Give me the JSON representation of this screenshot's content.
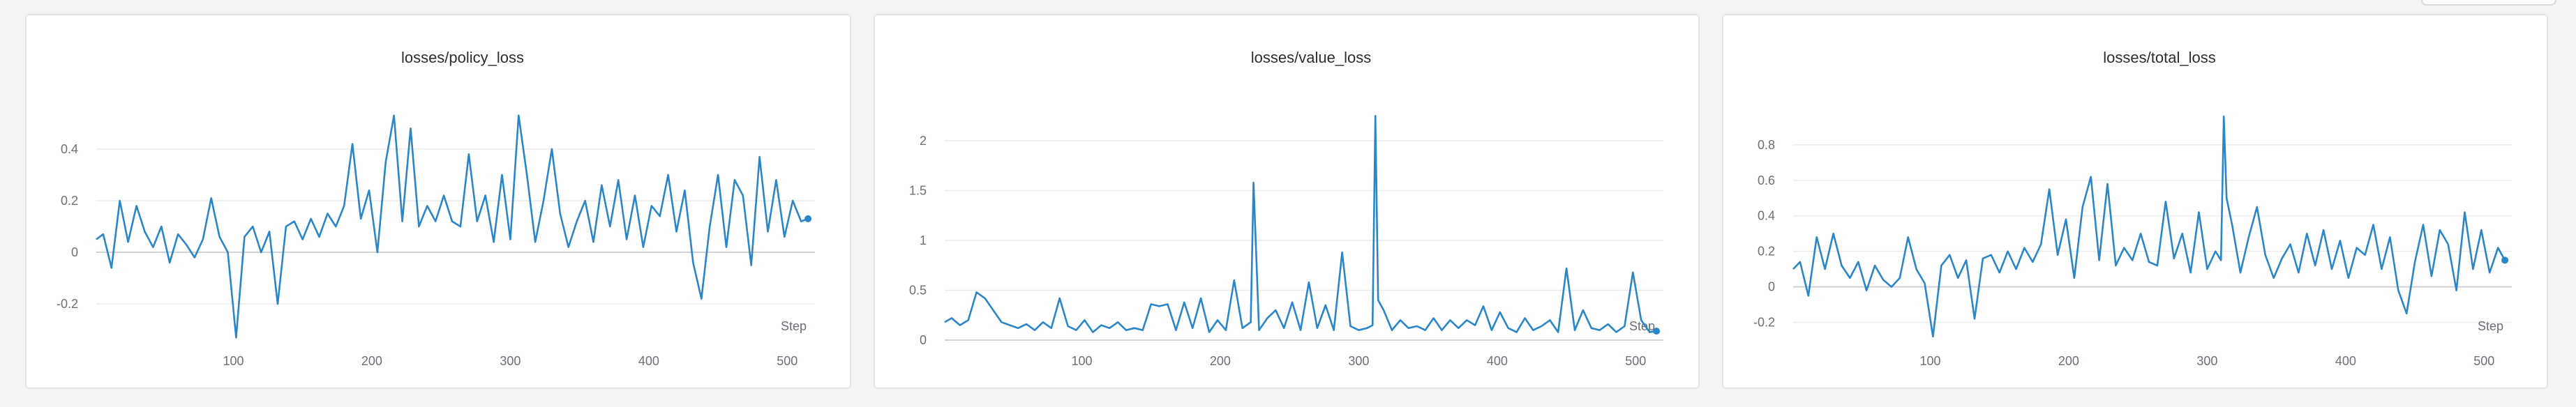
{
  "colors": {
    "series": "#2a86c9",
    "grid": "#ececef",
    "zero": "#cfd1d6"
  },
  "chart_data": [
    {
      "type": "line",
      "title": "losses/policy_loss",
      "xlabel": "Step",
      "ylabel": "",
      "xlim": [
        1,
        520
      ],
      "ylim": [
        -0.34,
        0.54
      ],
      "xticks": [
        100,
        200,
        300,
        400,
        500
      ],
      "yticks": [
        -0.2,
        0,
        0.2,
        0.4
      ],
      "ytick_labels": [
        "-0.2",
        "0",
        "0.2",
        "0.4"
      ],
      "series": [
        {
          "x": [
            1,
            6,
            12,
            18,
            24,
            30,
            36,
            42,
            48,
            54,
            60,
            66,
            72,
            78,
            84,
            90,
            96,
            102,
            108,
            114,
            120,
            126,
            132,
            138,
            144,
            150,
            156,
            162,
            168,
            174,
            180,
            186,
            192,
            198,
            204,
            210,
            216,
            222,
            228,
            234,
            240,
            246,
            252,
            258,
            264,
            270,
            276,
            282,
            288,
            294,
            300,
            306,
            312,
            318,
            324,
            330,
            336,
            342,
            348,
            354,
            360,
            366,
            372,
            378,
            384,
            390,
            396,
            402,
            408,
            414,
            420,
            426,
            432,
            438,
            444,
            450,
            456,
            462,
            468,
            474,
            480,
            486,
            492,
            498,
            504,
            510,
            515
          ],
          "values": [
            0.05,
            0.07,
            -0.06,
            0.2,
            0.04,
            0.18,
            0.08,
            0.02,
            0.1,
            -0.04,
            0.07,
            0.03,
            -0.02,
            0.05,
            0.21,
            0.06,
            0.0,
            -0.33,
            0.06,
            0.1,
            0.0,
            0.08,
            -0.2,
            0.1,
            0.12,
            0.05,
            0.13,
            0.06,
            0.15,
            0.1,
            0.18,
            0.42,
            0.13,
            0.24,
            0.0,
            0.35,
            0.53,
            0.12,
            0.48,
            0.1,
            0.18,
            0.12,
            0.22,
            0.12,
            0.1,
            0.38,
            0.12,
            0.22,
            0.04,
            0.3,
            0.05,
            0.53,
            0.3,
            0.04,
            0.2,
            0.4,
            0.15,
            0.02,
            0.12,
            0.2,
            0.04,
            0.26,
            0.1,
            0.28,
            0.05,
            0.22,
            0.02,
            0.18,
            0.14,
            0.3,
            0.08,
            0.24,
            -0.04,
            -0.18,
            0.1,
            0.3,
            0.02,
            0.28,
            0.22,
            -0.05,
            0.37,
            0.08,
            0.28,
            0.06,
            0.2,
            0.12,
            0.13
          ]
        }
      ]
    },
    {
      "type": "line",
      "title": "losses/value_loss",
      "xlabel": "Step",
      "ylabel": "",
      "xlim": [
        1,
        520
      ],
      "ylim": [
        0,
        2.28
      ],
      "xticks": [
        100,
        200,
        300,
        400,
        500
      ],
      "yticks": [
        0,
        0.5,
        1,
        1.5,
        2
      ],
      "ytick_labels": [
        "0",
        "0.5",
        "1",
        "1.5",
        "2"
      ],
      "series": [
        {
          "x": [
            1,
            6,
            12,
            18,
            24,
            30,
            36,
            42,
            48,
            54,
            60,
            66,
            72,
            78,
            84,
            90,
            96,
            102,
            108,
            114,
            120,
            126,
            132,
            138,
            144,
            150,
            156,
            162,
            168,
            174,
            180,
            186,
            192,
            198,
            204,
            210,
            216,
            222,
            224,
            228,
            234,
            240,
            246,
            252,
            258,
            264,
            270,
            276,
            282,
            288,
            294,
            300,
            306,
            310,
            312,
            314,
            318,
            324,
            330,
            336,
            342,
            348,
            354,
            360,
            366,
            372,
            378,
            384,
            390,
            396,
            402,
            408,
            414,
            420,
            426,
            432,
            438,
            444,
            450,
            456,
            462,
            468,
            474,
            480,
            486,
            492,
            498,
            504,
            510,
            515
          ],
          "values": [
            0.18,
            0.22,
            0.15,
            0.2,
            0.48,
            0.42,
            0.3,
            0.18,
            0.15,
            0.12,
            0.16,
            0.1,
            0.18,
            0.12,
            0.42,
            0.14,
            0.1,
            0.2,
            0.08,
            0.15,
            0.12,
            0.18,
            0.1,
            0.12,
            0.1,
            0.36,
            0.34,
            0.36,
            0.1,
            0.38,
            0.12,
            0.42,
            0.08,
            0.2,
            0.1,
            0.6,
            0.12,
            0.18,
            1.58,
            0.1,
            0.22,
            0.3,
            0.12,
            0.38,
            0.1,
            0.58,
            0.12,
            0.35,
            0.1,
            0.88,
            0.14,
            0.1,
            0.12,
            0.15,
            2.25,
            0.4,
            0.3,
            0.1,
            0.2,
            0.12,
            0.14,
            0.1,
            0.22,
            0.1,
            0.2,
            0.12,
            0.2,
            0.15,
            0.34,
            0.1,
            0.28,
            0.12,
            0.08,
            0.22,
            0.1,
            0.14,
            0.2,
            0.08,
            0.72,
            0.1,
            0.3,
            0.12,
            0.1,
            0.16,
            0.08,
            0.14,
            0.68,
            0.2,
            0.08,
            0.09
          ]
        }
      ]
    },
    {
      "type": "line",
      "title": "losses/total_loss",
      "xlabel": "Step",
      "ylabel": "",
      "xlim": [
        1,
        520
      ],
      "ylim": [
        -0.3,
        0.98
      ],
      "xticks": [
        100,
        200,
        300,
        400,
        500
      ],
      "yticks": [
        -0.2,
        0,
        0.2,
        0.4,
        0.6,
        0.8
      ],
      "ytick_labels": [
        "-0.2",
        "0",
        "0.2",
        "0.4",
        "0.6",
        "0.8"
      ],
      "series": [
        {
          "x": [
            1,
            6,
            12,
            18,
            24,
            30,
            36,
            42,
            48,
            54,
            60,
            66,
            72,
            78,
            84,
            90,
            96,
            102,
            108,
            114,
            120,
            126,
            132,
            138,
            144,
            150,
            156,
            162,
            168,
            174,
            180,
            186,
            192,
            198,
            204,
            210,
            216,
            222,
            228,
            234,
            240,
            246,
            252,
            258,
            264,
            270,
            276,
            282,
            288,
            294,
            300,
            306,
            310,
            312,
            314,
            318,
            324,
            330,
            336,
            342,
            348,
            354,
            360,
            366,
            372,
            378,
            384,
            390,
            396,
            402,
            408,
            414,
            420,
            426,
            432,
            438,
            444,
            450,
            456,
            462,
            468,
            474,
            480,
            486,
            492,
            498,
            504,
            510,
            515
          ],
          "values": [
            0.1,
            0.14,
            -0.05,
            0.28,
            0.1,
            0.3,
            0.12,
            0.05,
            0.14,
            -0.02,
            0.12,
            0.04,
            0.0,
            0.05,
            0.28,
            0.1,
            0.02,
            -0.28,
            0.12,
            0.18,
            0.05,
            0.15,
            -0.18,
            0.16,
            0.18,
            0.08,
            0.2,
            0.1,
            0.22,
            0.14,
            0.24,
            0.55,
            0.18,
            0.38,
            0.05,
            0.45,
            0.62,
            0.15,
            0.58,
            0.12,
            0.22,
            0.15,
            0.3,
            0.14,
            0.12,
            0.48,
            0.16,
            0.3,
            0.08,
            0.42,
            0.1,
            0.2,
            0.15,
            0.96,
            0.5,
            0.35,
            0.08,
            0.28,
            0.45,
            0.18,
            0.05,
            0.16,
            0.24,
            0.08,
            0.3,
            0.12,
            0.32,
            0.1,
            0.26,
            0.05,
            0.22,
            0.18,
            0.35,
            0.1,
            0.28,
            -0.02,
            -0.15,
            0.14,
            0.35,
            0.06,
            0.32,
            0.24,
            -0.02,
            0.42,
            0.1,
            0.32,
            0.08,
            0.22,
            0.15
          ]
        }
      ]
    }
  ]
}
